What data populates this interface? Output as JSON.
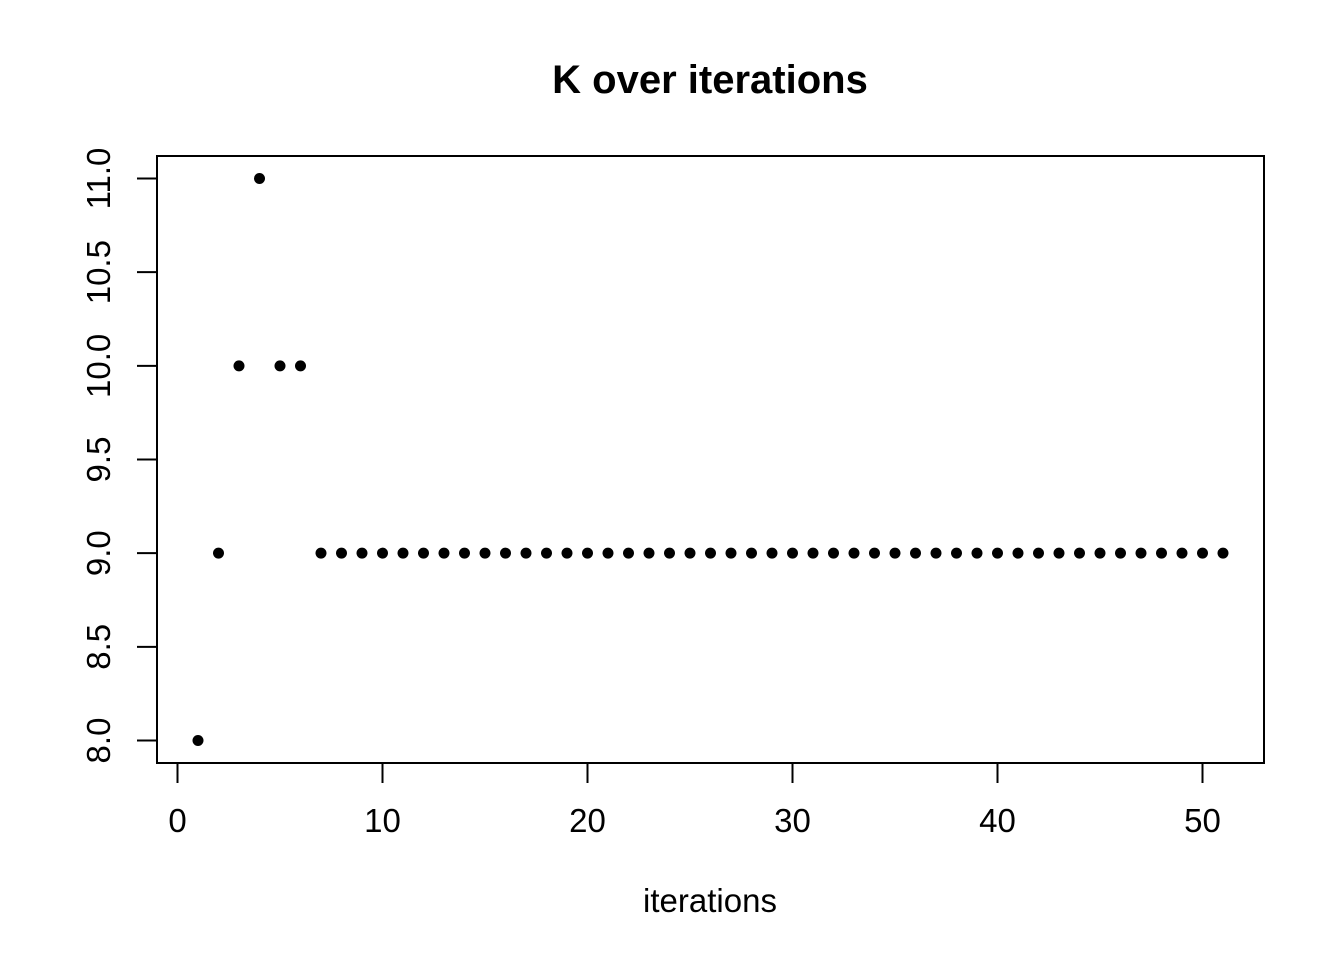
{
  "page": {
    "background": "#ffffff"
  },
  "chart_data": {
    "type": "scatter",
    "title": "K over iterations",
    "xlabel": "iterations",
    "ylabel": "",
    "style": "R-base-graphics",
    "grid": false,
    "point_color": "#000000",
    "axis_color": "#000000",
    "background": "#ffffff",
    "xlim": [
      -1,
      53
    ],
    "ylim": [
      7.88,
      11.12
    ],
    "x_ticks": {
      "values": [
        0,
        10,
        20,
        30,
        40,
        50
      ],
      "labels": [
        "0",
        "10",
        "20",
        "30",
        "40",
        "50"
      ]
    },
    "y_ticks": {
      "values": [
        8.0,
        8.5,
        9.0,
        9.5,
        10.0,
        10.5,
        11.0
      ],
      "labels": [
        "8.0",
        "8.5",
        "9.0",
        "9.5",
        "10.0",
        "10.5",
        "11.0"
      ]
    },
    "x": [
      1,
      2,
      3,
      4,
      5,
      6,
      7,
      8,
      9,
      10,
      11,
      12,
      13,
      14,
      15,
      16,
      17,
      18,
      19,
      20,
      21,
      22,
      23,
      24,
      25,
      26,
      27,
      28,
      29,
      30,
      31,
      32,
      33,
      34,
      35,
      36,
      37,
      38,
      39,
      40,
      41,
      42,
      43,
      44,
      45,
      46,
      47,
      48,
      49,
      50,
      51
    ],
    "y": [
      8,
      9,
      10,
      11,
      10,
      10,
      9,
      9,
      9,
      9,
      9,
      9,
      9,
      9,
      9,
      9,
      9,
      9,
      9,
      9,
      9,
      9,
      9,
      9,
      9,
      9,
      9,
      9,
      9,
      9,
      9,
      9,
      9,
      9,
      9,
      9,
      9,
      9,
      9,
      9,
      9,
      9,
      9,
      9,
      9,
      9,
      9,
      9,
      9,
      9,
      9
    ]
  }
}
